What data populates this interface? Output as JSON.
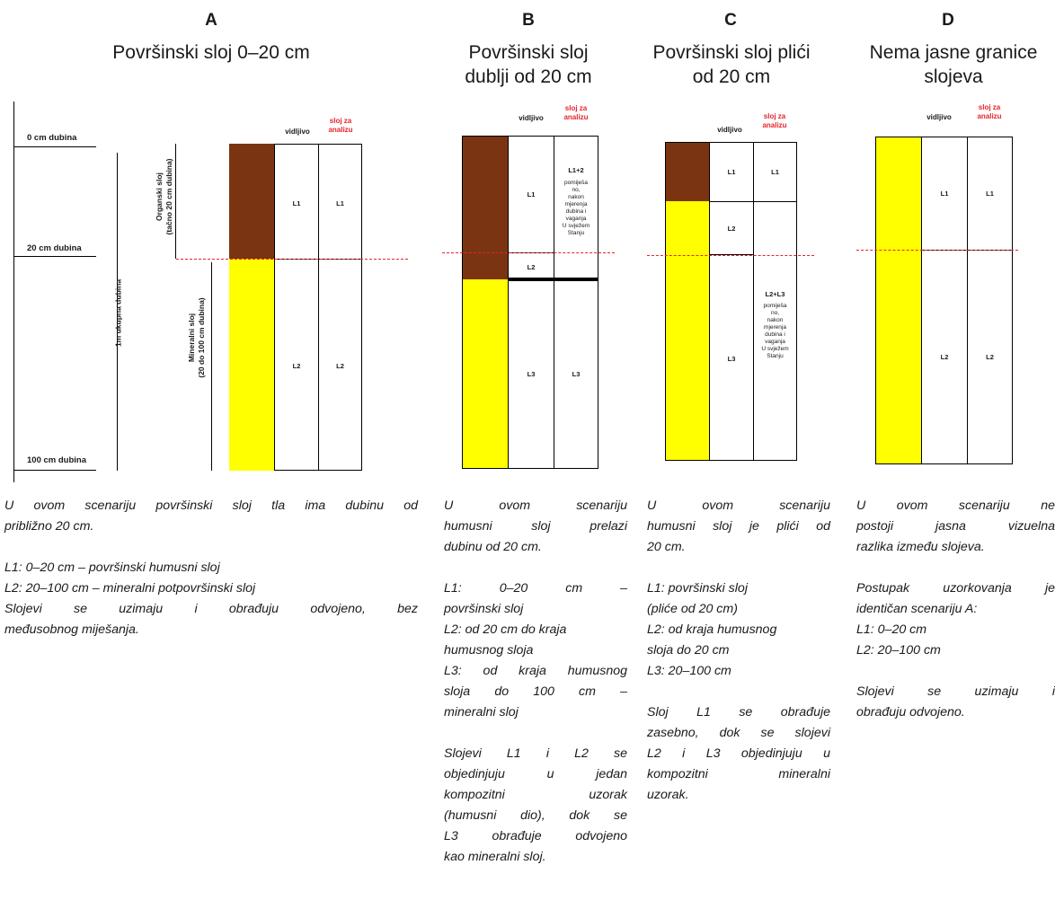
{
  "colors": {
    "humus": "#7a3412",
    "mineral": "#ffff00",
    "cut_line": "#e8232a"
  },
  "headers": {
    "visible": "vidljivo",
    "analysis_line1": "sloj za",
    "analysis_line2": "analizu"
  },
  "scenarios": {
    "A": {
      "letter": "A",
      "title": "Površinski sloj 0–20 cm",
      "depth_labels": {
        "d0": "0 cm dubina",
        "d20": "20 cm dubina",
        "d100": "100 cm dubina",
        "total": "1m ukupna dubina"
      },
      "organic_label_1": "Organski sloj",
      "organic_label_2": "(tačno 20 cm dubina)",
      "mineral_label_1": "Mineralni sloj",
      "mineral_label_2": "(20 do 100 cm dubina)",
      "cells": {
        "v1": "L1",
        "a1": "L1",
        "v2": "L2",
        "a2": "L2"
      },
      "desc_intro_1": "U ovom scenariju površinski sloj tla ima dubinu od",
      "desc_intro_2": "približno 20 cm.",
      "desc_l1": "L1: 0–20 cm – površinski humusni sloj",
      "desc_l2": "L2: 20–100 cm – mineralni potpovršinski sloj",
      "desc_note_1": "Slojevi se uzimaju i obrađuju odvojeno, bez",
      "desc_note_2": "međusobnog miješanja."
    },
    "B": {
      "letter": "B",
      "title_1": "Površinski sloj",
      "title_2": "dublji od 20 cm",
      "cells": {
        "v1": "L1",
        "v2": "L2",
        "a12": "L1+2",
        "v3": "L3",
        "a3": "L3"
      },
      "note": [
        "pomiješa",
        "no,",
        "nakon",
        "mjerenja",
        "dubina i",
        "vaganja",
        "U svježem",
        "Stanju"
      ],
      "desc": [
        {
          "t": "U ovom scenariju",
          "j": true
        },
        {
          "t": "humusni sloj prelazi",
          "j": true
        },
        {
          "t": "dubinu od 20 cm.",
          "j": false
        },
        {
          "t": "",
          "j": false
        },
        {
          "t": "L1: 0–20 cm –",
          "j": true
        },
        {
          "t": "površinski sloj",
          "j": false
        },
        {
          "t": "L2: od 20 cm do kraja",
          "j": false
        },
        {
          "t": "humusnog sloja",
          "j": false
        },
        {
          "t": "L3: od kraja humusnog",
          "j": true
        },
        {
          "t": "sloja do 100 cm –",
          "j": true
        },
        {
          "t": "mineralni sloj",
          "j": false
        },
        {
          "t": "",
          "j": false
        },
        {
          "t": "Slojevi L1 i L2 se",
          "j": true
        },
        {
          "t": "objedinjuju u jedan",
          "j": true
        },
        {
          "t": "kompozitni uzorak",
          "j": true
        },
        {
          "t": "(humusni dio), dok se",
          "j": true
        },
        {
          "t": "L3 obrađuje odvojeno",
          "j": true
        },
        {
          "t": "kao mineralni sloj.",
          "j": false
        }
      ]
    },
    "C": {
      "letter": "C",
      "title_1": "Površinski sloj plići",
      "title_2": "od 20 cm",
      "cells": {
        "v1": "L1",
        "a1": "L1",
        "v2": "L2",
        "a23": "L2+L3",
        "v3": "L3"
      },
      "note": [
        "pomiješa",
        "no,",
        "nakon",
        "mjerenja",
        "dubina i",
        "vaganja",
        "U svježem",
        "Stanju"
      ],
      "desc": [
        {
          "t": "U ovom scenariju",
          "j": true
        },
        {
          "t": "humusni sloj je plići od",
          "j": true
        },
        {
          "t": "20 cm.",
          "j": false
        },
        {
          "t": "",
          "j": false
        },
        {
          "t": "L1: površinski sloj",
          "j": false
        },
        {
          "t": "(pliće od 20 cm)",
          "j": false
        },
        {
          "t": "L2: od kraja humusnog",
          "j": false
        },
        {
          "t": "sloja do 20 cm",
          "j": false
        },
        {
          "t": "L3: 20–100 cm",
          "j": false
        },
        {
          "t": "",
          "j": false
        },
        {
          "t": "Sloj L1 se obrađuje",
          "j": true
        },
        {
          "t": "zasebno, dok se slojevi",
          "j": true
        },
        {
          "t": "L2 i L3 objedinjuju u",
          "j": true
        },
        {
          "t": "kompozitni mineralni",
          "j": true
        },
        {
          "t": "uzorak.",
          "j": false
        }
      ]
    },
    "D": {
      "letter": "D",
      "title_1": "Nema jasne granice",
      "title_2": "slojeva",
      "cells": {
        "v1": "L1",
        "a1": "L1",
        "v2": "L2",
        "a2": "L2"
      },
      "desc": [
        {
          "t": "U ovom scenariju ne",
          "j": true
        },
        {
          "t": "postoji jasna vizuelna",
          "j": true
        },
        {
          "t": "razlika između slojeva.",
          "j": false
        },
        {
          "t": "",
          "j": false
        },
        {
          "t": "Postupak uzorkovanja je",
          "j": true
        },
        {
          "t": "identičan scenariju A:",
          "j": false
        },
        {
          "t": "L1: 0–20 cm",
          "j": false
        },
        {
          "t": "L2: 20–100 cm",
          "j": false
        },
        {
          "t": "",
          "j": false
        },
        {
          "t": "Slojevi se uzimaju i",
          "j": true
        },
        {
          "t": "obrađuju odvojeno.",
          "j": false
        }
      ]
    }
  }
}
